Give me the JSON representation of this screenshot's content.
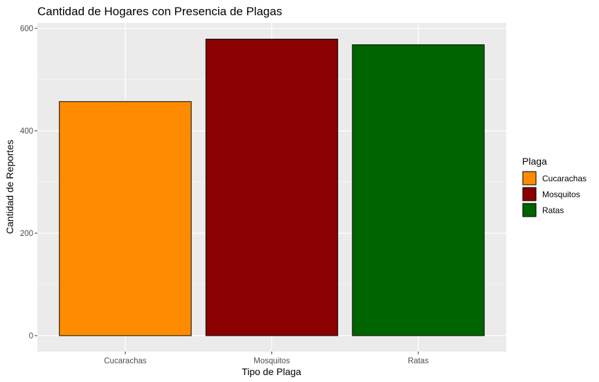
{
  "chart_data": {
    "type": "bar",
    "title": "Cantidad de Hogares con Presencia de Plagas",
    "xlabel": "Tipo de Plaga",
    "ylabel": "Cantidad de Reportes",
    "categories": [
      "Cucarachas",
      "Mosquitos",
      "Ratas"
    ],
    "values": [
      457,
      579,
      568
    ],
    "colors": [
      "#FF8C00",
      "#8B0000",
      "#006400"
    ],
    "ylim": [
      0,
      600
    ],
    "yticks": [
      0,
      200,
      400,
      600
    ],
    "grid": true,
    "legend": {
      "title": "Plaga",
      "placement": "right",
      "items": [
        "Cucarachas",
        "Mosquitos",
        "Ratas"
      ]
    }
  }
}
